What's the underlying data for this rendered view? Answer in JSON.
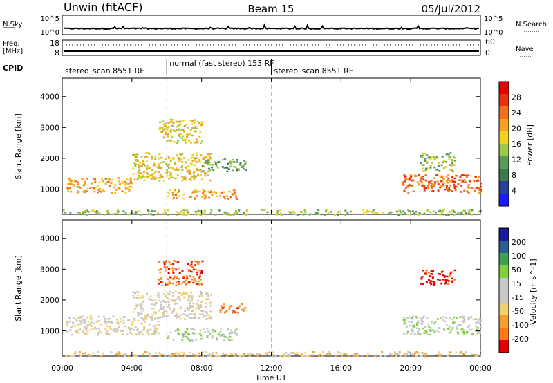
{
  "header": {
    "radar": "Unwin (fitACF)",
    "beam": "Beam 15",
    "date": "05/Jul/2012"
  },
  "status": {
    "nsky_label": "N.Sky",
    "nsearch_label": "N.Search",
    "freq_label_1": "Freq.",
    "freq_label_2": "[MHz]",
    "nave_label": "Nave",
    "cpid_label": "CPID",
    "nsky_ticks": [
      "10^5",
      "10^0"
    ],
    "nsearch_ticks": [
      "10^5",
      "10^0"
    ],
    "freq_ticks": [
      "18",
      "8"
    ],
    "nave_ticks": [
      "60",
      "0"
    ],
    "cpid_segments": [
      {
        "label": "stereo_scan 8551 RF",
        "start_hour": 0
      },
      {
        "label": "normal (fast stereo) 153 RF",
        "start_hour": 6
      },
      {
        "label": "stereo_scan 8551 RF",
        "start_hour": 12
      }
    ]
  },
  "colors": {
    "power_scale": [
      "#1a1aff",
      "#2a3f9e",
      "#3b7a4a",
      "#5a9a5a",
      "#9fc84a",
      "#f0d020",
      "#f5a020",
      "#f07020",
      "#e63010",
      "#e60000"
    ],
    "velocity_scale": [
      "#e60000",
      "#ff7a1a",
      "#f0a030",
      "#f0d070",
      "#c8c8c8",
      "#c8c8c8",
      "#80d040",
      "#40a050",
      "#2a6090",
      "#1a1a9a"
    ]
  },
  "chart_data": [
    {
      "type": "heatmap",
      "name": "power",
      "ylabel": "Slant Range [km]",
      "colorbar_label": "Power [dB]",
      "colorbar_ticks": [
        "28",
        "24",
        "20",
        "16",
        "12",
        "8",
        "4"
      ],
      "x_range_hours": [
        0,
        24
      ],
      "y_range_km": [
        180,
        4600
      ],
      "y_ticks": [
        "1000",
        "2000",
        "3000",
        "4000"
      ],
      "regions": [
        {
          "t0": 0.2,
          "t1": 4.0,
          "r0": 900,
          "r1": 1400,
          "level": 6
        },
        {
          "t0": 4.0,
          "t1": 8.5,
          "r0": 1300,
          "r1": 2200,
          "level": 5
        },
        {
          "t0": 5.5,
          "t1": 8.0,
          "r0": 2500,
          "r1": 3300,
          "level": 5
        },
        {
          "t0": 8.0,
          "t1": 10.5,
          "r0": 1600,
          "r1": 2000,
          "level": 3
        },
        {
          "t0": 6.0,
          "t1": 10.0,
          "r0": 700,
          "r1": 1000,
          "level": 6
        },
        {
          "t0": 19.5,
          "t1": 24.0,
          "r0": 900,
          "r1": 1500,
          "level": 7
        },
        {
          "t0": 20.5,
          "t1": 22.5,
          "r0": 1600,
          "r1": 2200,
          "level": 4
        },
        {
          "t0": 0.0,
          "t1": 24.0,
          "r0": 180,
          "r1": 350,
          "level": 4
        }
      ]
    },
    {
      "type": "heatmap",
      "name": "velocity",
      "ylabel": "Slant Range [km]",
      "colorbar_label": "Velocity [m s^-1]",
      "colorbar_ticks": [
        "200",
        "100",
        "50",
        "15",
        "-15",
        "-50",
        "-100",
        "-200"
      ],
      "x_range_hours": [
        0,
        24
      ],
      "y_range_km": [
        180,
        4600
      ],
      "y_ticks": [
        "1000",
        "2000",
        "3000",
        "4000"
      ],
      "x_ticks": [
        "00:00",
        "04:00",
        "08:00",
        "12:00",
        "16:00",
        "20:00",
        "00:00"
      ],
      "xlabel": "Time UT",
      "regions": [
        {
          "t0": 0.2,
          "t1": 5.5,
          "r0": 900,
          "r1": 1500,
          "level": 4
        },
        {
          "t0": 4.0,
          "t1": 8.5,
          "r0": 1400,
          "r1": 2300,
          "level": 4
        },
        {
          "t0": 5.5,
          "t1": 8.0,
          "r0": 2500,
          "r1": 3300,
          "level": 1
        },
        {
          "t0": 9.0,
          "t1": 10.5,
          "r0": 1600,
          "r1": 1900,
          "level": 1
        },
        {
          "t0": 6.0,
          "t1": 10.0,
          "r0": 700,
          "r1": 1100,
          "level": 5
        },
        {
          "t0": 19.5,
          "t1": 24.0,
          "r0": 900,
          "r1": 1500,
          "level": 5
        },
        {
          "t0": 20.5,
          "t1": 22.5,
          "r0": 2500,
          "r1": 3000,
          "level": 0
        },
        {
          "t0": 0.0,
          "t1": 24.0,
          "r0": 180,
          "r1": 350,
          "level": 3
        }
      ]
    }
  ]
}
